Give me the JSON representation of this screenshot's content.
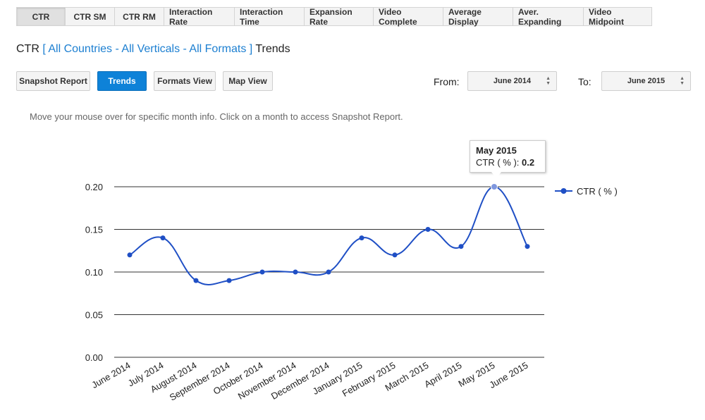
{
  "tabs": [
    "CTR",
    "CTR SM",
    "CTR RM",
    "Interaction Rate",
    "Interaction Time",
    "Expansion Rate",
    "Video Complete",
    "Average Display",
    "Aver. Expanding",
    "Video Midpoint"
  ],
  "header": {
    "metric": "CTR",
    "filters": "[ All Countries - All Verticals - All Formats ]",
    "view": "Trends"
  },
  "buttons": {
    "snapshot": "Snapshot Report",
    "trends": "Trends",
    "formats": "Formats View",
    "map": "Map View"
  },
  "range": {
    "from_label": "From:",
    "from_value": "June 2014",
    "to_label": "To:",
    "to_value": "June 2015"
  },
  "hint": "Move your mouse over for specific month info. Click on a month to access Snapshot Report.",
  "tooltip": {
    "month": "May 2015",
    "label": "CTR ( % ):",
    "value": "0.2"
  },
  "colors": {
    "accent": "#0e82d8",
    "series": "#1f4fc5",
    "link": "#1c7fd1"
  },
  "chart_data": {
    "type": "line",
    "categories": [
      "June 2014",
      "July 2014",
      "August 2014",
      "September 2014",
      "October 2014",
      "November 2014",
      "December 2014",
      "January 2015",
      "February 2015",
      "March 2015",
      "April 2015",
      "May 2015",
      "June 2015"
    ],
    "series": [
      {
        "name": "CTR ( % )",
        "values": [
          0.12,
          0.14,
          0.09,
          0.09,
          0.1,
          0.1,
          0.1,
          0.14,
          0.12,
          0.15,
          0.13,
          0.2,
          0.13
        ]
      }
    ],
    "yticks": [
      "0.00",
      "0.05",
      "0.10",
      "0.15",
      "0.20"
    ],
    "ylim": [
      0,
      0.2
    ],
    "grid": true,
    "legend": "right",
    "smooth": true
  }
}
